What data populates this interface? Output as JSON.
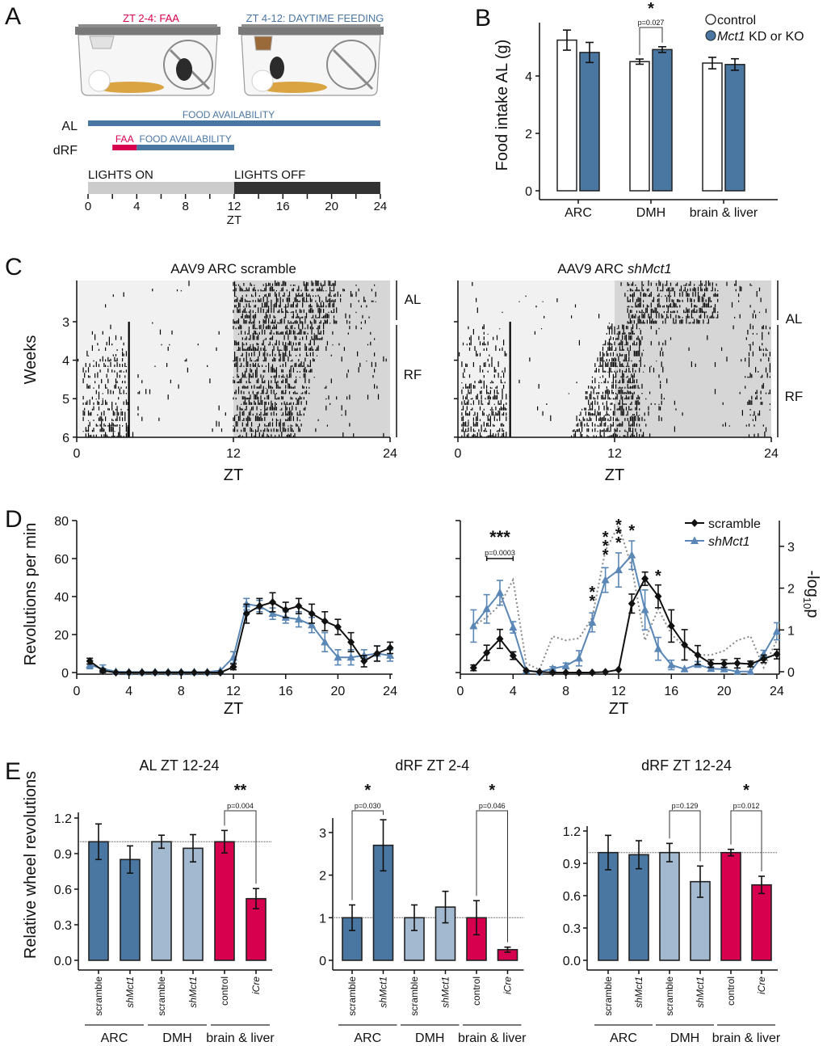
{
  "panel_labels": {
    "A": "A",
    "B": "B",
    "C": "C",
    "D": "D",
    "E": "E"
  },
  "chart_data": {
    "A": {
      "type": "timeline",
      "cage_titles": [
        {
          "text": "ZT 2-4: FAA",
          "color": "#d6004f"
        },
        {
          "text": "ZT 4-12: DAYTIME FEEDING",
          "color": "#4a76a2"
        }
      ],
      "rows": [
        {
          "label": "AL",
          "segments": [
            {
              "label": "FOOD AVAILABILITY",
              "start": 0,
              "end": 24,
              "color": "#4a76a2"
            }
          ]
        },
        {
          "label": "dRF",
          "segments": [
            {
              "label": "FAA",
              "start": 2,
              "end": 4,
              "color": "#d6004f"
            },
            {
              "label": "FOOD AVAILABILITY",
              "start": 4,
              "end": 12,
              "color": "#4a76a2"
            }
          ]
        }
      ],
      "lights": [
        {
          "label": "LIGHTS ON",
          "start": 0,
          "end": 12,
          "color": "#cccccc"
        },
        {
          "label": "LIGHTS OFF",
          "start": 12,
          "end": 24,
          "color": "#333333"
        }
      ],
      "xticks": [
        0,
        4,
        8,
        12,
        16,
        20,
        24
      ],
      "xlabel": "ZT"
    },
    "B": {
      "type": "bar",
      "ylabel": "Food intake AL (g)",
      "categories": [
        "ARC",
        "DMH",
        "brain & liver"
      ],
      "yticks": [
        0,
        2,
        4
      ],
      "ylim": [
        0,
        5.8
      ],
      "series": [
        {
          "name": "control",
          "values": [
            5.25,
            4.5,
            4.45
          ],
          "errors": [
            0.35,
            0.09,
            0.2
          ],
          "color": "#ffffff"
        },
        {
          "name_italic": "Mct1",
          "name_rest": " KD or KO",
          "values": [
            4.82,
            4.92,
            4.4
          ],
          "errors": [
            0.35,
            0.1,
            0.2
          ],
          "color": "#4a76a2"
        }
      ],
      "annotations": [
        {
          "category": 1,
          "star": "*",
          "p": "p=0.027"
        }
      ]
    },
    "C": {
      "type": "actogram",
      "ylabel": "Weeks",
      "yticks": [
        3,
        4,
        5,
        6
      ],
      "xticks": [
        0,
        12,
        24
      ],
      "xlabel": "ZT",
      "phases": [
        "AL",
        "RF"
      ],
      "panels": [
        {
          "title": "AAV9 ARC scramble",
          "title_italic": ""
        },
        {
          "title": "AAV9 ARC ",
          "title_italic": "shMct1"
        }
      ]
    },
    "D": {
      "type": "line",
      "ylabel": "Revolutions per min",
      "y2label_parts": [
        "-log",
        "10",
        "p"
      ],
      "xlabel": "ZT",
      "ylim": [
        0,
        80
      ],
      "yticks": [
        0,
        20,
        40,
        60,
        80
      ],
      "xticks": [
        0,
        4,
        8,
        12,
        16,
        20,
        24
      ],
      "y2ticks": [
        0,
        1,
        2,
        3
      ],
      "legend": [
        {
          "name": "scramble",
          "color": "#111111",
          "marker": "diamond"
        },
        {
          "name": "shMct1",
          "color": "#5a87b5",
          "marker": "triangle"
        }
      ],
      "panels": [
        {
          "x": [
            1,
            2,
            3,
            4,
            5,
            6,
            7,
            8,
            9,
            10,
            11,
            12,
            13,
            14,
            15,
            16,
            17,
            18,
            19,
            20,
            21,
            22,
            23,
            24
          ],
          "series": [
            {
              "name": "scramble",
              "y": [
                6,
                1,
                0,
                0,
                0,
                0,
                0,
                0,
                0,
                0,
                0,
                3,
                31,
                35,
                37,
                33,
                35,
                31,
                27,
                24,
                16,
                6,
                10,
                13
              ],
              "err": [
                1.5,
                1,
                0.3,
                0.3,
                0.3,
                0.3,
                0.3,
                0.3,
                0.3,
                0.3,
                0.3,
                1.5,
                5,
                4,
                5,
                4,
                4,
                5,
                5,
                4,
                5,
                3,
                4,
                3
              ]
            },
            {
              "name": "shMct1",
              "y": [
                4,
                2,
                0.5,
                0.3,
                0.3,
                0.3,
                0.3,
                0.3,
                0.3,
                0.3,
                1,
                8,
                36,
                35,
                31,
                29,
                28,
                25,
                16,
                8,
                8,
                9,
                10,
                9
              ],
              "err": [
                2,
                2,
                0.5,
                0.3,
                0.3,
                0.3,
                0.3,
                0.3,
                0.3,
                0.3,
                0.5,
                3,
                3,
                3,
                3,
                3,
                4,
                4,
                5,
                4,
                4,
                3,
                4,
                3
              ]
            }
          ]
        },
        {
          "x": [
            1,
            2,
            3,
            4,
            5,
            6,
            7,
            8,
            9,
            10,
            11,
            12,
            13,
            14,
            15,
            16,
            17,
            18,
            19,
            20,
            21,
            22,
            23,
            24
          ],
          "series": [
            {
              "name": "scramble",
              "y": [
                2.5,
                10.4,
                17.7,
                8.9,
                1,
                0.3,
                0,
                0,
                0,
                0,
                0.3,
                1.5,
                36.3,
                49.4,
                40.1,
                24.5,
                14.6,
                9.2,
                4.7,
                4.7,
                4.9,
                4.5,
                7.2,
                9.7
              ],
              "err": [
                1.5,
                4,
                5,
                2,
                0.5,
                0.3,
                0.3,
                0.3,
                0.3,
                0.3,
                0.3,
                0.5,
                5,
                3.5,
                6,
                8.5,
                8,
                5,
                2,
                2,
                2.5,
                1.5,
                2,
                2.5
              ]
            },
            {
              "name": "shMct1",
              "y": [
                24.5,
                33.5,
                42,
                23.8,
                1,
                0.3,
                2.1,
                3.5,
                7.5,
                26.4,
                48.7,
                54,
                61.8,
                33,
                12.5,
                4,
                1.8,
                4.3,
                2,
                1.8,
                0.5,
                0.5,
                9.7,
                21.7
              ],
              "err": [
                8.5,
                7.5,
                6.5,
                3,
                0.5,
                0.5,
                1,
                1.5,
                4,
                5,
                6.5,
                9,
                7.5,
                10.5,
                6,
                2.5,
                0.5,
                1.5,
                1,
                1,
                0.5,
                0.5,
                2,
                4.5
              ]
            }
          ],
          "neg_log10_p": [
            1.1,
            1.3,
            1.6,
            2.2,
            0.2,
            0.05,
            0.85,
            0.75,
            0.8,
            1.3,
            2.9,
            3.5,
            2.5,
            0.75,
            1.5,
            0.9,
            0.6,
            0.4,
            0.4,
            0.5,
            0.75,
            0.85,
            0.1,
            0.75
          ],
          "significance": [
            {
              "x": 10,
              "stars": [
                "*",
                "*"
              ]
            },
            {
              "x": 11,
              "stars": [
                "*",
                "*",
                "*"
              ]
            },
            {
              "x": 12,
              "stars": [
                "*",
                "*",
                "*"
              ]
            },
            {
              "x": 13,
              "stars": [
                "*"
              ]
            },
            {
              "x": 15,
              "stars": [
                "*"
              ]
            }
          ],
          "bracket": {
            "from": 2,
            "to": 4,
            "stars": "***",
            "p": "p=0.0003"
          }
        }
      ]
    },
    "E": {
      "type": "bar",
      "ylabel": "Relative wheel revolutions",
      "categories": [
        {
          "label": "scramble",
          "italic": false,
          "color": "#4a76a2"
        },
        {
          "label": "shMct1",
          "italic": true,
          "color": "#4a76a2"
        },
        {
          "label": "scramble",
          "italic": false,
          "color": "#a3b9d0"
        },
        {
          "label": "shMct1",
          "italic": true,
          "color": "#a3b9d0"
        },
        {
          "label": "control",
          "italic": false,
          "color": "#d6004f"
        },
        {
          "label": "iCre",
          "italic": true,
          "color": "#d6004f"
        }
      ],
      "groups": [
        "ARC",
        "DMH",
        "brain & liver"
      ],
      "panels": [
        {
          "title": "AL ZT 12-24",
          "ylim": [
            0,
            1.2
          ],
          "yticks": [
            "0.0",
            "0.3",
            "0.6",
            "0.9",
            "1.2"
          ],
          "values": [
            1.0,
            0.85,
            1.0,
            0.945,
            1.0,
            0.52
          ],
          "errors": [
            0.15,
            0.115,
            0.055,
            0.115,
            0.095,
            0.085
          ],
          "reference_line": 1.0,
          "annotations": [
            {
              "from": 4,
              "to": 5,
              "star": "**",
              "p": "p=0.004"
            }
          ]
        },
        {
          "title": "dRF ZT 2-4",
          "ylim": [
            0,
            3
          ],
          "yticks": [
            "0",
            "1",
            "2",
            "3"
          ],
          "values": [
            1.0,
            2.7,
            1.0,
            1.25,
            1.0,
            0.25
          ],
          "errors": [
            0.3,
            0.6,
            0.3,
            0.37,
            0.4,
            0.06
          ],
          "reference_line": 1.0,
          "annotations": [
            {
              "from": 0,
              "to": 1,
              "star": "*",
              "p": "p=0.030"
            },
            {
              "from": 4,
              "to": 5,
              "star": "*",
              "p": "p=0.046"
            }
          ]
        },
        {
          "title": "dRF ZT 12-24",
          "ylim": [
            0,
            1.2
          ],
          "yticks": [
            "0.0",
            "0.3",
            "0.6",
            "0.9",
            "1.2"
          ],
          "values": [
            1.0,
            0.98,
            1.0,
            0.73,
            1.0,
            0.7
          ],
          "errors": [
            0.16,
            0.13,
            0.085,
            0.145,
            0.03,
            0.08
          ],
          "reference_line": 1.0,
          "annotations": [
            {
              "from": 2,
              "to": 3,
              "star": "",
              "p": "p=0.129"
            },
            {
              "from": 4,
              "to": 5,
              "star": "*",
              "p": "p=0.012"
            }
          ]
        }
      ]
    }
  }
}
